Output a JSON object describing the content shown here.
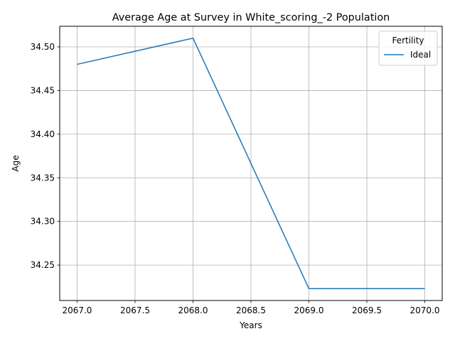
{
  "chart_data": {
    "type": "line",
    "title": "Average Age at Survey in White_scoring_-2 Population",
    "xlabel": "Years",
    "ylabel": "Age",
    "x": [
      2067,
      2068,
      2069,
      2070
    ],
    "series": [
      {
        "name": "Ideal",
        "values": [
          34.48,
          34.51,
          34.223,
          34.223
        ],
        "color": "#1f77b4"
      }
    ],
    "xlim": [
      2066.85,
      2070.15
    ],
    "ylim": [
      34.2094,
      34.5236
    ],
    "x_ticks": [
      "2067.0",
      "2067.5",
      "2068.0",
      "2068.5",
      "2069.0",
      "2069.5",
      "2070.0"
    ],
    "x_tick_values": [
      2067.0,
      2067.5,
      2068.0,
      2068.5,
      2069.0,
      2069.5,
      2070.0
    ],
    "y_ticks": [
      "34.25",
      "34.30",
      "34.35",
      "34.40",
      "34.45",
      "34.50"
    ],
    "y_tick_values": [
      34.25,
      34.3,
      34.35,
      34.4,
      34.45,
      34.5
    ],
    "grid": true,
    "legend": {
      "title": "Fertility",
      "placement": "top-right"
    }
  }
}
